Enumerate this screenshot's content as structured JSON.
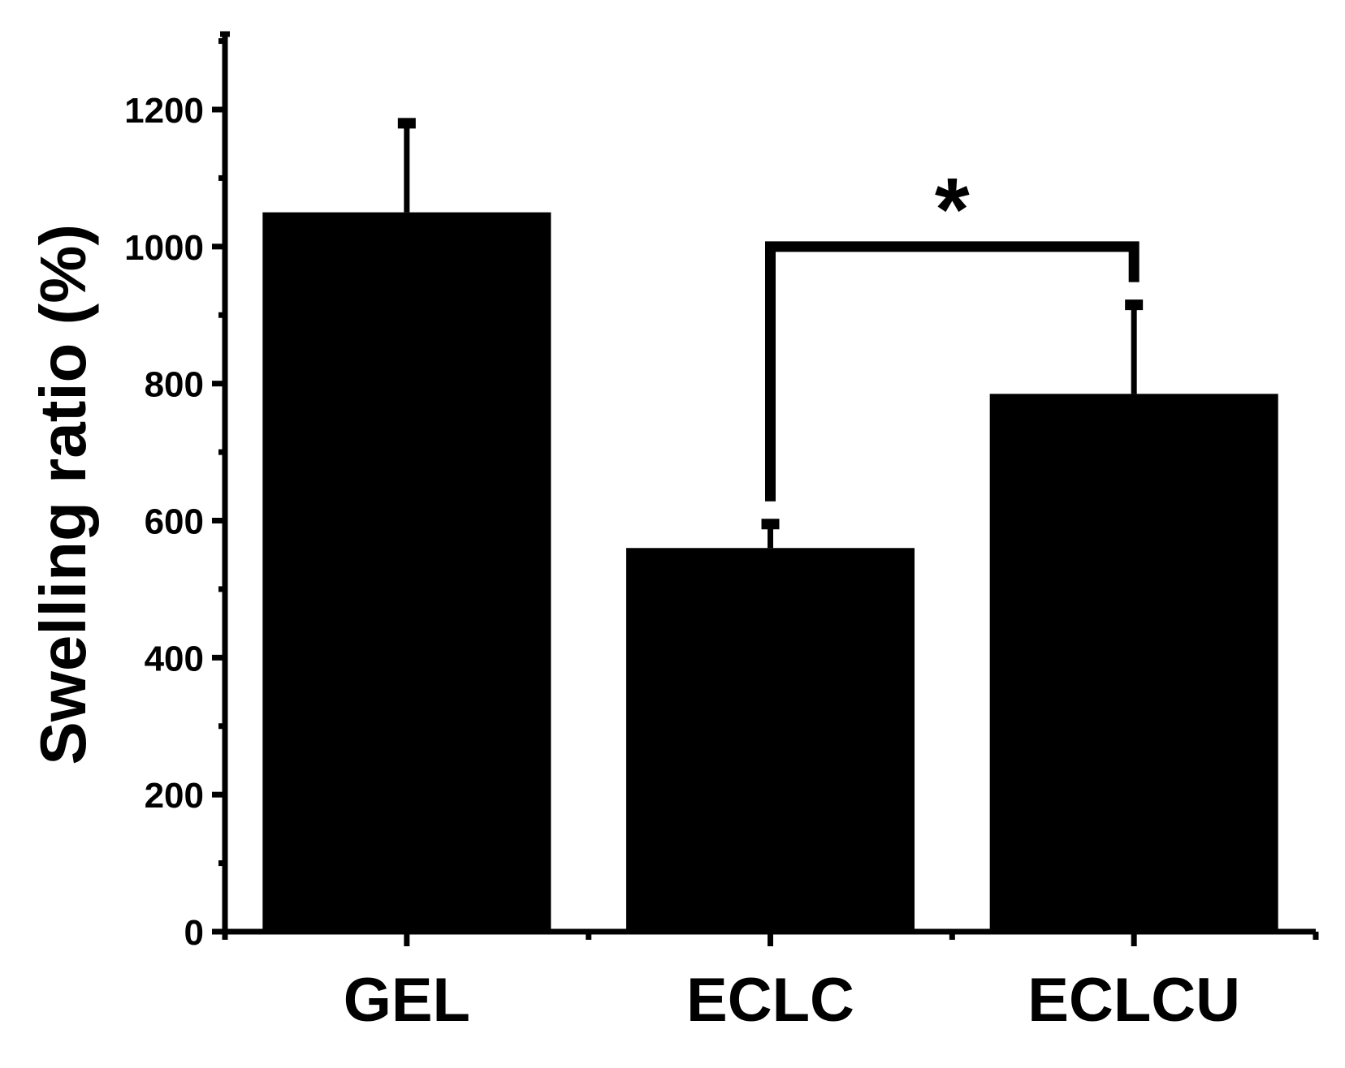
{
  "chart_data": {
    "type": "bar",
    "categories": [
      "GEL",
      "ECLC",
      "ECLCU"
    ],
    "values": [
      1050,
      560,
      785
    ],
    "error_upper": [
      1180,
      595,
      915
    ],
    "xlabel": "",
    "ylabel": "Swelling ratio (%)",
    "ylim": [
      0,
      1300
    ],
    "yticks": [
      0,
      200,
      400,
      600,
      800,
      1000,
      1200
    ],
    "ytick_labels": [
      "0",
      "200",
      "400",
      "600",
      "800",
      "1000",
      "1200"
    ],
    "grid": false,
    "legend": "none",
    "bar_color": "#000000",
    "significance": [
      {
        "from": "ECLC",
        "to": "ECLCU",
        "bracket_y": 1000,
        "label": "*"
      }
    ]
  }
}
